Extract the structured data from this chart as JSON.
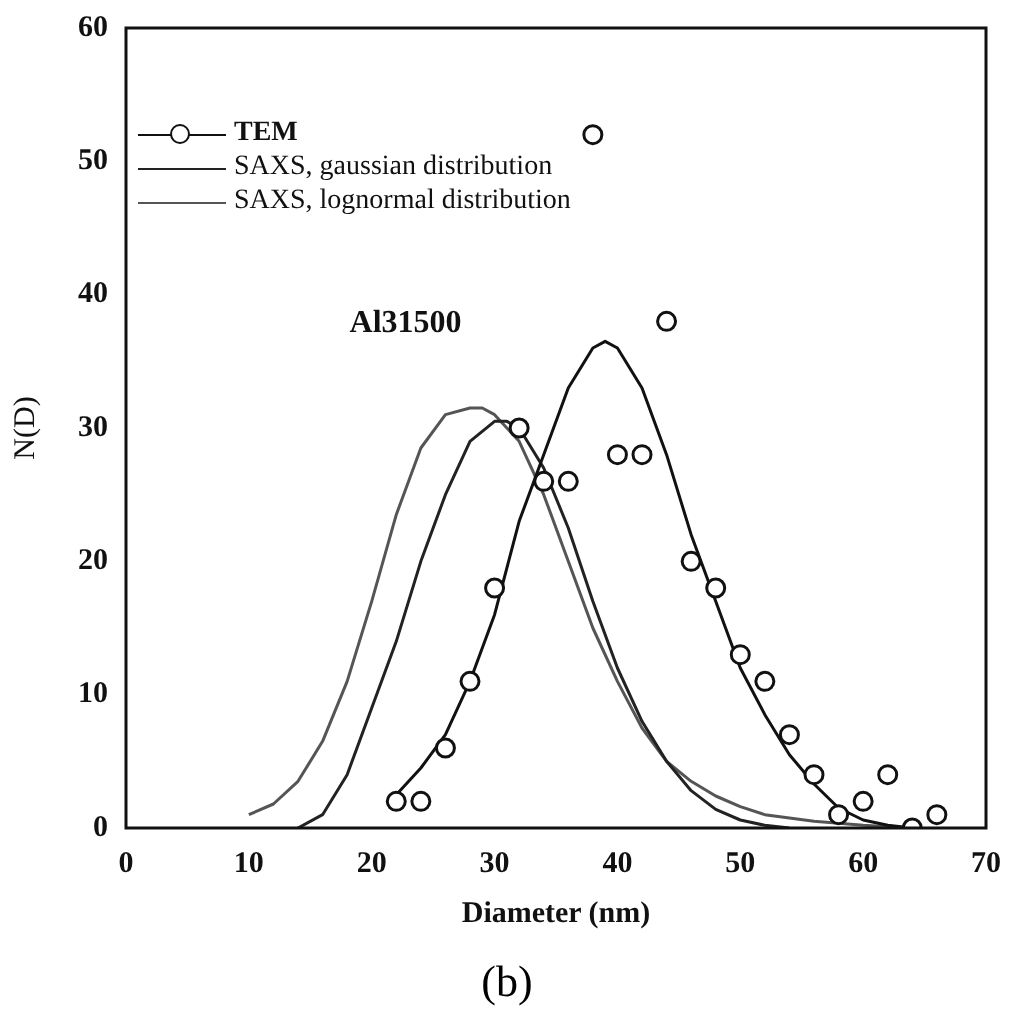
{
  "chart_data": {
    "type": "line",
    "xlabel": "Diameter (nm)",
    "ylabel": "N(D)",
    "annotations": [
      "Al31500",
      "(b)"
    ],
    "xlim": [
      0,
      70
    ],
    "xticks": [
      0,
      10,
      20,
      30,
      40,
      50,
      60,
      70
    ],
    "ylim": [
      0,
      60
    ],
    "yticks": [
      0,
      10,
      20,
      30,
      40,
      50,
      60
    ],
    "grid": false,
    "legend": "top left",
    "series": [
      {
        "name": "TEM",
        "type": "scatter",
        "marker": "circle",
        "color": "#111111",
        "x": [
          22,
          24,
          26,
          28,
          30,
          32,
          34,
          36,
          38,
          40,
          42,
          44,
          46,
          48,
          50,
          52,
          54,
          56,
          58,
          60,
          62,
          64,
          66
        ],
        "values": [
          2,
          2,
          6,
          11,
          18,
          30,
          26,
          26,
          52,
          28,
          28,
          38,
          20,
          18,
          13,
          11,
          7,
          4,
          1,
          2,
          4,
          0,
          1
        ]
      },
      {
        "type": "line",
        "marker": "none",
        "color": "#111111",
        "x": [
          22,
          24,
          26,
          28,
          30,
          32,
          34,
          36,
          38,
          39,
          40,
          42,
          44,
          46,
          48,
          50,
          52,
          54,
          56,
          58,
          60,
          62,
          64
        ],
        "values": [
          2.5,
          4.5,
          7,
          11,
          16,
          23,
          28,
          33,
          36,
          36.5,
          36,
          33,
          28,
          22,
          17,
          12,
          8.5,
          5.5,
          3.3,
          1.5,
          0.6,
          0.2,
          0
        ]
      },
      {
        "name": "SAXS, gaussian distribution",
        "type": "line",
        "marker": "none",
        "color": "#222222",
        "x": [
          14,
          16,
          18,
          20,
          22,
          24,
          26,
          28,
          30,
          31,
          32,
          34,
          36,
          38,
          40,
          42,
          44,
          46,
          48,
          50,
          52,
          54
        ],
        "values": [
          0,
          1,
          4,
          9,
          14,
          20,
          25,
          29,
          30.5,
          30.5,
          30,
          27,
          22.5,
          17,
          12,
          8,
          5,
          2.8,
          1.4,
          0.6,
          0.2,
          0
        ]
      },
      {
        "name": "SAXS, lognormal distribution",
        "type": "line",
        "marker": "none",
        "color": "#555555",
        "x": [
          10,
          12,
          14,
          16,
          18,
          20,
          22,
          24,
          26,
          28,
          29,
          30,
          32,
          34,
          36,
          38,
          40,
          42,
          44,
          46,
          48,
          50,
          52,
          56,
          60,
          64
        ],
        "values": [
          1,
          1.8,
          3.5,
          6.5,
          11,
          17,
          23.5,
          28.5,
          31,
          31.5,
          31.5,
          31,
          29,
          25,
          20,
          15,
          11,
          7.5,
          5,
          3.5,
          2.4,
          1.6,
          1,
          0.5,
          0.2,
          0
        ]
      }
    ]
  }
}
